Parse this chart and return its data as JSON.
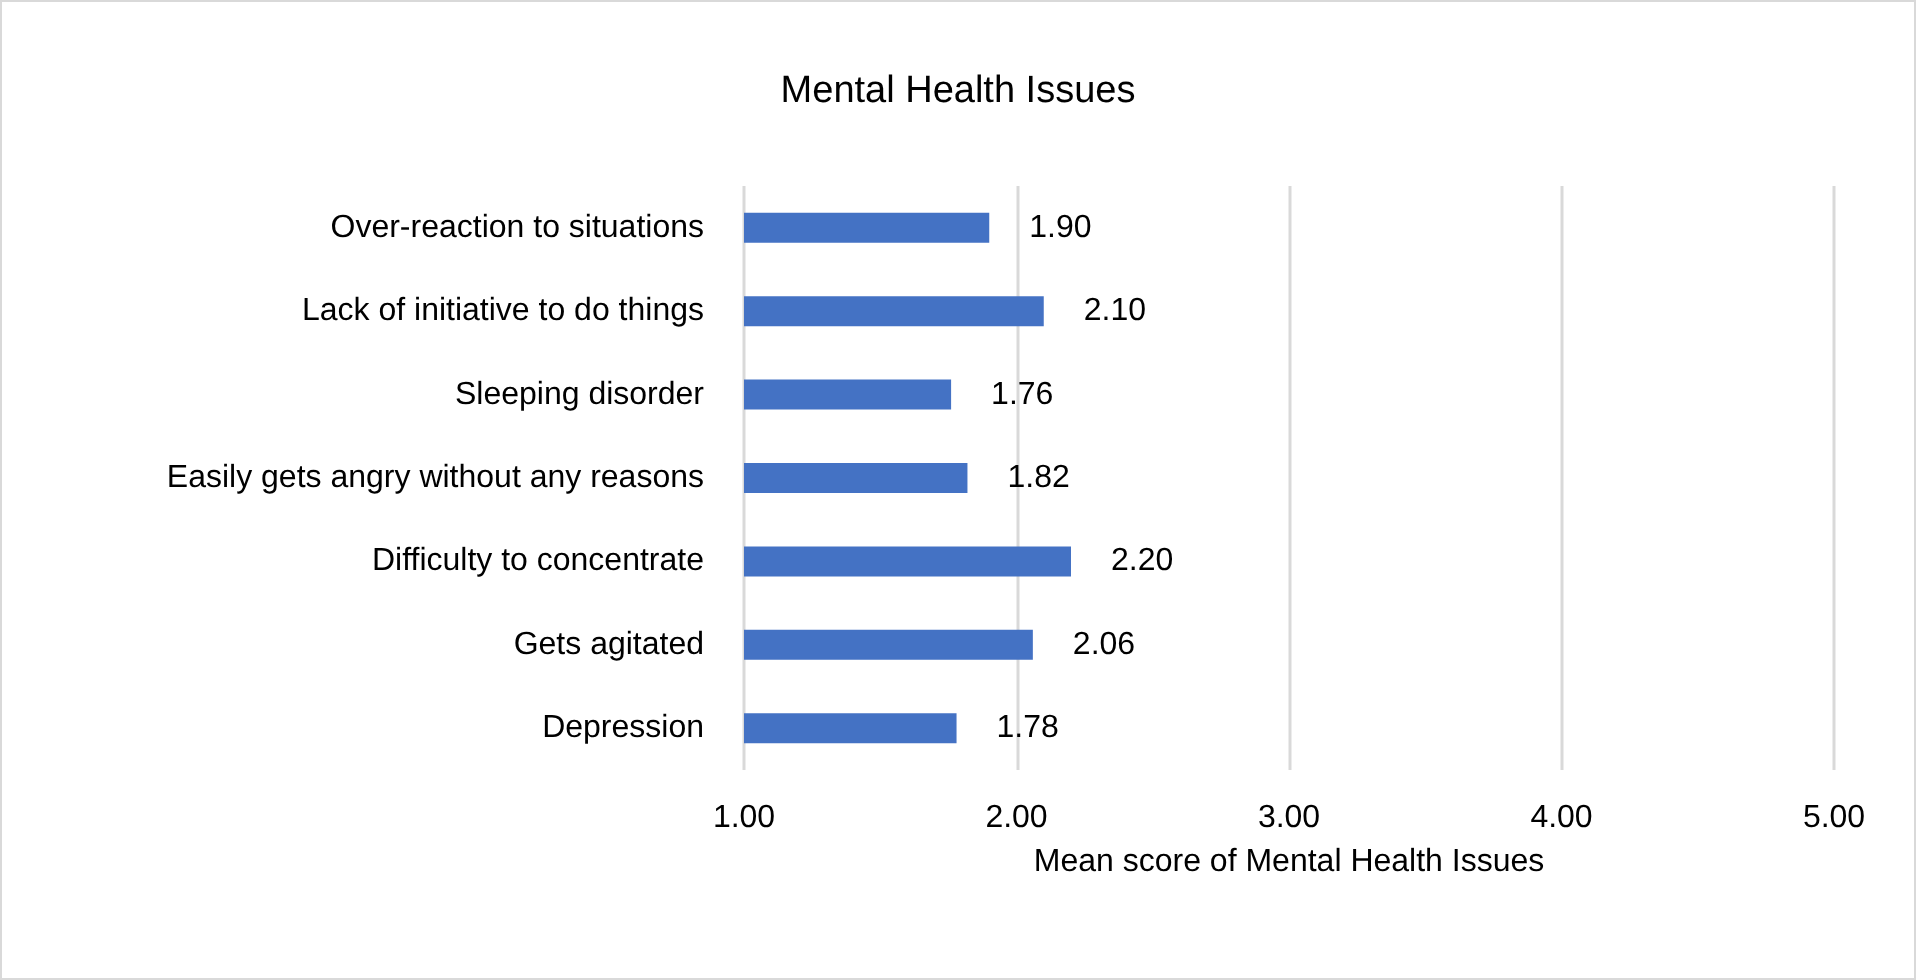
{
  "chart_data": {
    "type": "bar",
    "orientation": "horizontal",
    "title": "Mental Health Issues",
    "xlabel": "Mean score of Mental Health Issues",
    "categories": [
      "Over-reaction to situations",
      "Lack of initiative to do things",
      "Sleeping disorder",
      "Easily gets angry without any reasons",
      "Difficulty to concentrate",
      "Gets agitated",
      "Depression"
    ],
    "values": [
      1.9,
      2.1,
      1.76,
      1.82,
      2.2,
      2.06,
      1.78
    ],
    "value_labels": [
      "1.90",
      "2.10",
      "1.76",
      "1.82",
      "2.20",
      "2.06",
      "1.78"
    ],
    "color": "#4472c4",
    "xlim": [
      1,
      5
    ],
    "xticks": [
      {
        "value": 1,
        "label": "1.00"
      },
      {
        "value": 2,
        "label": "2.00"
      },
      {
        "value": 3,
        "label": "3.00"
      },
      {
        "value": 4,
        "label": "4.00"
      },
      {
        "value": 5,
        "label": "5.00"
      }
    ],
    "grid": "x"
  }
}
